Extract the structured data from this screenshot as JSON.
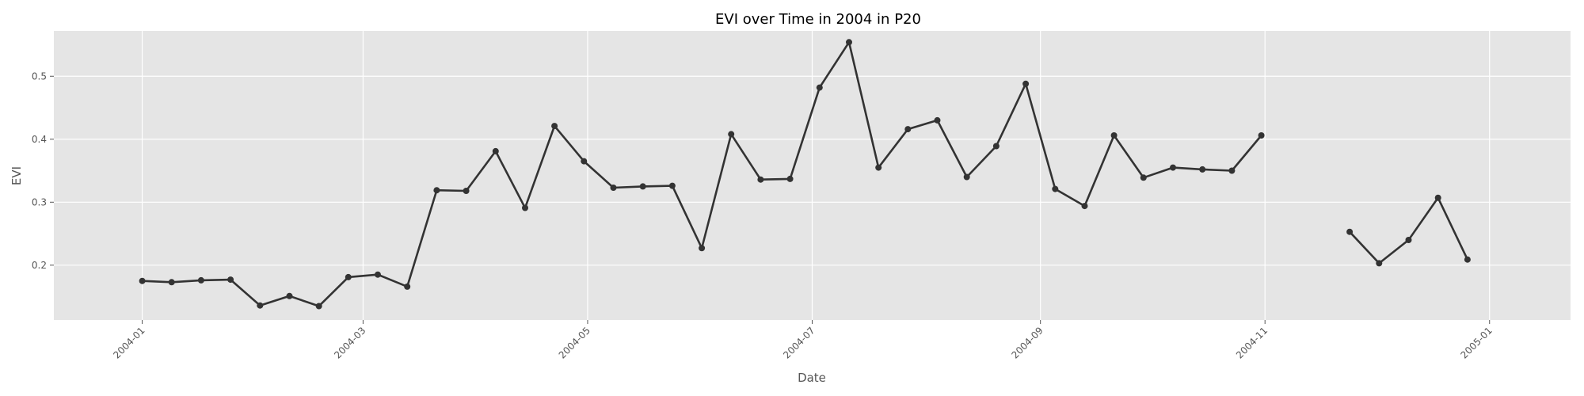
{
  "chart_data": {
    "type": "line",
    "title": "EVI over Time in 2004 in P20",
    "xlabel": "Date",
    "ylabel": "EVI",
    "x_axis": "date",
    "xlim": [
      "2003-12-08",
      "2005-01-23"
    ],
    "ylim": [
      0.113,
      0.572
    ],
    "x_ticks": [
      "2004-01-01",
      "2004-03-01",
      "2004-05-01",
      "2004-07-01",
      "2004-09-01",
      "2004-11-01",
      "2005-01-01"
    ],
    "x_tick_labels": [
      "2004-01",
      "2004-03",
      "2004-05",
      "2004-07",
      "2004-09",
      "2004-11",
      "2005-01"
    ],
    "y_ticks": [
      0.2,
      0.3,
      0.4,
      0.5
    ],
    "y_tick_labels": [
      "0.2",
      "0.3",
      "0.4",
      "0.5"
    ],
    "grid": true,
    "background": "#e5e5e5",
    "line_color": "#333333",
    "series": [
      {
        "segments": [
          [
            {
              "x": "2004-01-01",
              "y": 0.175
            },
            {
              "x": "2004-01-09",
              "y": 0.173
            },
            {
              "x": "2004-01-17",
              "y": 0.176
            },
            {
              "x": "2004-01-25",
              "y": 0.177
            },
            {
              "x": "2004-02-02",
              "y": 0.136
            },
            {
              "x": "2004-02-10",
              "y": 0.151
            },
            {
              "x": "2004-02-18",
              "y": 0.135
            },
            {
              "x": "2004-02-26",
              "y": 0.181
            },
            {
              "x": "2004-03-05",
              "y": 0.185
            },
            {
              "x": "2004-03-13",
              "y": 0.166
            },
            {
              "x": "2004-03-21",
              "y": 0.319
            },
            {
              "x": "2004-03-29",
              "y": 0.318
            },
            {
              "x": "2004-04-06",
              "y": 0.381
            },
            {
              "x": "2004-04-14",
              "y": 0.291
            },
            {
              "x": "2004-04-22",
              "y": 0.421
            },
            {
              "x": "2004-04-30",
              "y": 0.365
            },
            {
              "x": "2004-05-08",
              "y": 0.323
            },
            {
              "x": "2004-05-16",
              "y": 0.325
            },
            {
              "x": "2004-05-24",
              "y": 0.326
            },
            {
              "x": "2004-06-01",
              "y": 0.227
            },
            {
              "x": "2004-06-09",
              "y": 0.408
            },
            {
              "x": "2004-06-17",
              "y": 0.336
            },
            {
              "x": "2004-06-25",
              "y": 0.337
            },
            {
              "x": "2004-07-03",
              "y": 0.482
            },
            {
              "x": "2004-07-11",
              "y": 0.554
            },
            {
              "x": "2004-07-19",
              "y": 0.355
            },
            {
              "x": "2004-07-27",
              "y": 0.416
            },
            {
              "x": "2004-08-04",
              "y": 0.43
            },
            {
              "x": "2004-08-12",
              "y": 0.34
            },
            {
              "x": "2004-08-20",
              "y": 0.389
            },
            {
              "x": "2004-08-28",
              "y": 0.488
            },
            {
              "x": "2004-09-05",
              "y": 0.321
            },
            {
              "x": "2004-09-13",
              "y": 0.294
            },
            {
              "x": "2004-09-21",
              "y": 0.406
            },
            {
              "x": "2004-09-29",
              "y": 0.339
            },
            {
              "x": "2004-10-07",
              "y": 0.355
            },
            {
              "x": "2004-10-15",
              "y": 0.352
            },
            {
              "x": "2004-10-23",
              "y": 0.35
            },
            {
              "x": "2004-10-31",
              "y": 0.406
            }
          ],
          [
            {
              "x": "2004-11-24",
              "y": 0.253
            },
            {
              "x": "2004-12-02",
              "y": 0.203
            },
            {
              "x": "2004-12-10",
              "y": 0.24
            },
            {
              "x": "2004-12-18",
              "y": 0.307
            },
            {
              "x": "2004-12-26",
              "y": 0.209
            }
          ]
        ]
      }
    ]
  }
}
